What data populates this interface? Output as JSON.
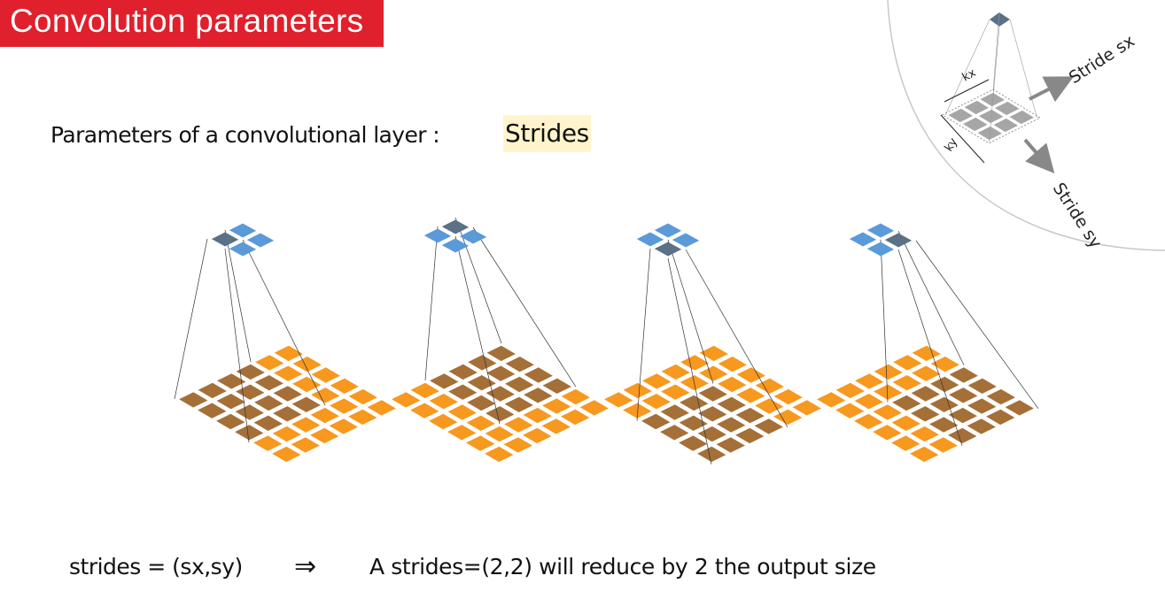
{
  "title": "Convolution parameters",
  "subtitle": "Parameters of a convolutional layer :",
  "keyword": "Strides",
  "inset": {
    "kx_label": "kx",
    "ky_label": "ky",
    "stride_sx_label": "Stride sx",
    "stride_sy_label": "Stride sy"
  },
  "formula": "strides = (sx,sy)",
  "implies_symbol": "⇒",
  "result": "A strides=(2,2) will reduce by 2 the output size",
  "colors": {
    "title_bg": "#e0202c",
    "keyword_bg": "#fff4cc",
    "input_cell": "#f7981f",
    "input_active": "#a56f38",
    "output_cell": "#5b9ad9",
    "output_active": "#5a7187",
    "kernel_gray": "#a6a6a6"
  },
  "panels": [
    {
      "output_active": [
        0,
        0
      ],
      "window_origin": [
        0,
        0
      ]
    },
    {
      "output_active": [
        0,
        1
      ],
      "window_origin": [
        0,
        2
      ]
    },
    {
      "output_active": [
        1,
        0
      ],
      "window_origin": [
        2,
        0
      ]
    },
    {
      "output_active": [
        1,
        1
      ],
      "window_origin": [
        2,
        2
      ]
    }
  ]
}
